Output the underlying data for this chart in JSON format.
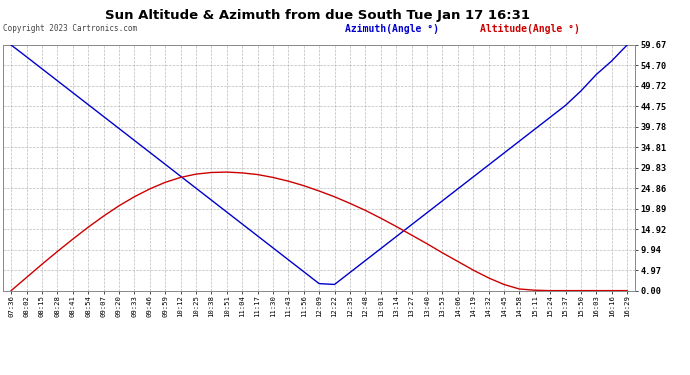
{
  "title": "Sun Altitude & Azimuth from due South Tue Jan 17 16:31",
  "copyright": "Copyright 2023 Cartronics.com",
  "legend_azimuth": "Azimuth(Angle °)",
  "legend_altitude": "Altitude(Angle °)",
  "ymin": 0.0,
  "ymax": 59.67,
  "yticks": [
    0.0,
    4.97,
    9.94,
    14.92,
    19.89,
    24.86,
    29.83,
    34.81,
    39.78,
    44.75,
    49.72,
    54.7,
    59.67
  ],
  "ytick_labels": [
    "0.00",
    "4.97",
    "9.94",
    "14.92",
    "19.89",
    "24.86",
    "29.83",
    "34.81",
    "39.78",
    "44.75",
    "49.72",
    "54.70",
    "59.67"
  ],
  "bg_color": "#ffffff",
  "grid_color": "#aaaaaa",
  "azimuth_color": "#0000cc",
  "altitude_color": "#cc0000",
  "xtick_labels": [
    "07:36",
    "08:02",
    "08:15",
    "08:28",
    "08:41",
    "08:54",
    "09:07",
    "09:20",
    "09:33",
    "09:46",
    "09:59",
    "10:12",
    "10:25",
    "10:38",
    "10:51",
    "11:04",
    "11:17",
    "11:30",
    "11:43",
    "11:56",
    "12:09",
    "12:22",
    "12:35",
    "12:48",
    "13:01",
    "13:14",
    "13:27",
    "13:40",
    "13:53",
    "14:06",
    "14:19",
    "14:32",
    "14:45",
    "14:58",
    "15:11",
    "15:24",
    "15:37",
    "15:50",
    "16:03",
    "16:16",
    "16:29"
  ],
  "azimuth_values": [
    59.67,
    56.8,
    53.9,
    51.0,
    48.1,
    45.2,
    42.3,
    39.4,
    36.5,
    33.6,
    30.7,
    27.8,
    24.9,
    22.0,
    19.1,
    16.2,
    13.3,
    10.4,
    7.5,
    4.6,
    1.7,
    1.5,
    4.4,
    7.3,
    10.2,
    13.1,
    16.0,
    18.9,
    21.8,
    24.7,
    27.6,
    30.5,
    33.4,
    36.3,
    39.2,
    42.1,
    45.0,
    48.5,
    52.5,
    55.8,
    59.67
  ],
  "altitude_values": [
    0.0,
    3.2,
    6.4,
    9.5,
    12.5,
    15.4,
    18.1,
    20.6,
    22.8,
    24.7,
    26.3,
    27.5,
    28.3,
    28.7,
    28.8,
    28.6,
    28.2,
    27.5,
    26.6,
    25.5,
    24.2,
    22.8,
    21.2,
    19.5,
    17.6,
    15.6,
    13.5,
    11.4,
    9.2,
    7.1,
    5.0,
    3.1,
    1.5,
    0.4,
    0.1,
    0.0,
    0.0,
    0.0,
    0.0,
    0.0,
    0.0
  ],
  "title_color": "#000000",
  "tick_color": "#000000",
  "outer_bg": "#ffffff",
  "spine_color": "#888888"
}
